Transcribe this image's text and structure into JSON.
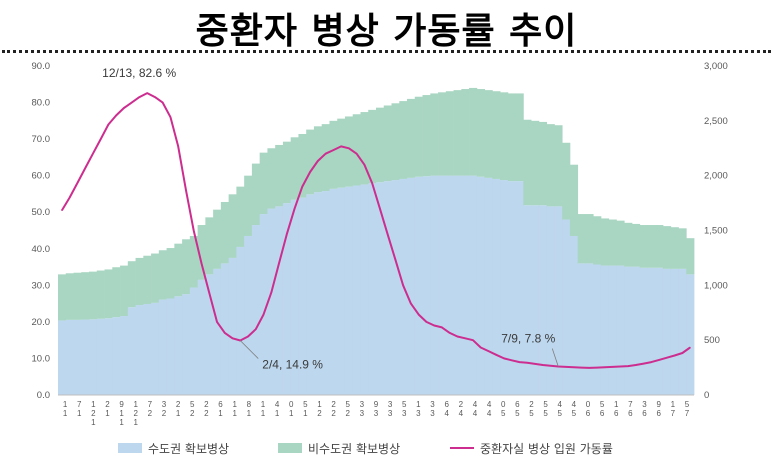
{
  "title": "중환자 병상 가동률 추이",
  "chart_data": {
    "type": "bar+line",
    "left_axis": {
      "min": 0,
      "max": 90,
      "step": 10,
      "ticks": [
        "0.0",
        "10.0",
        "20.0",
        "30.0",
        "40.0",
        "50.0",
        "60.0",
        "70.0",
        "80.0",
        "90.0"
      ]
    },
    "right_axis": {
      "min": 0,
      "max": 3000,
      "step": 500,
      "ticks": [
        "0",
        "500",
        "1,000",
        "1,500",
        "2,000",
        "2,500",
        "3,000"
      ]
    },
    "x_tick_labels": [
      [
        "1",
        "1"
      ],
      [
        "7",
        "1"
      ],
      [
        "1",
        "2",
        "1"
      ],
      [
        "2",
        "1"
      ],
      [
        "9",
        "1",
        "1"
      ],
      [
        "1",
        "2",
        "1"
      ],
      [
        "7",
        "2"
      ],
      [
        "3",
        "2"
      ],
      [
        "2",
        "1"
      ],
      [
        "5",
        "2"
      ],
      [
        "2",
        "2"
      ],
      [
        "6",
        "1"
      ],
      [
        "1",
        "1"
      ],
      [
        "8",
        "1"
      ],
      [
        "1",
        "1"
      ],
      [
        "4",
        "1"
      ],
      [
        "0",
        "1"
      ],
      [
        "5",
        "1"
      ],
      [
        "1",
        "2"
      ],
      [
        "2",
        "2"
      ],
      [
        "5",
        "2"
      ],
      [
        "3",
        "3"
      ],
      [
        "9",
        "3"
      ],
      [
        "3",
        "3"
      ],
      [
        "5",
        "3"
      ],
      [
        "1",
        "3"
      ],
      [
        "3",
        "3"
      ],
      [
        "6",
        "4"
      ],
      [
        "2",
        "4"
      ],
      [
        "4",
        "4"
      ],
      [
        "4",
        "4"
      ],
      [
        "0",
        "5"
      ],
      [
        "6",
        "5"
      ],
      [
        "2",
        "5"
      ],
      [
        "5",
        "5"
      ],
      [
        "4",
        "5"
      ],
      [
        "4",
        "5"
      ],
      [
        "0",
        "6"
      ],
      [
        "5",
        "6"
      ],
      [
        "1",
        "6"
      ],
      [
        "7",
        "6"
      ],
      [
        "3",
        "6"
      ],
      [
        "9",
        "6"
      ],
      [
        "1",
        "7"
      ],
      [
        "5",
        "7"
      ]
    ],
    "series": [
      {
        "name": "수도권 확보병상",
        "axis": "right",
        "kind": "bar",
        "color": "#bdd7ee",
        "values": [
          680,
          685,
          685,
          688,
          690,
          695,
          700,
          710,
          720,
          800,
          820,
          830,
          840,
          870,
          880,
          900,
          920,
          980,
          1050,
          1100,
          1150,
          1200,
          1250,
          1350,
          1450,
          1550,
          1650,
          1700,
          1720,
          1750,
          1780,
          1800,
          1830,
          1850,
          1860,
          1880,
          1890,
          1900,
          1910,
          1920,
          1930,
          1940,
          1950,
          1960,
          1970,
          1980,
          1990,
          1995,
          2000,
          2000,
          2000,
          2000,
          2000,
          2000,
          1990,
          1980,
          1970,
          1960,
          1950,
          1950,
          1730,
          1730,
          1730,
          1720,
          1720,
          1600,
          1450,
          1200,
          1200,
          1190,
          1180,
          1180,
          1180,
          1170,
          1170,
          1160,
          1160,
          1160,
          1150,
          1150,
          1150,
          1100
        ]
      },
      {
        "name": "비수도권 확보병상",
        "axis": "right",
        "kind": "bar",
        "color": "#a9d6c3",
        "values": [
          420,
          425,
          430,
          432,
          435,
          440,
          445,
          455,
          460,
          420,
          430,
          440,
          450,
          450,
          460,
          480,
          500,
          470,
          500,
          520,
          540,
          560,
          580,
          550,
          550,
          560,
          560,
          550,
          560,
          560,
          570,
          580,
          590,
          600,
          610,
          620,
          630,
          640,
          650,
          660,
          670,
          680,
          690,
          700,
          710,
          720,
          730,
          740,
          750,
          760,
          770,
          780,
          790,
          800,
          800,
          800,
          800,
          800,
          800,
          800,
          780,
          770,
          760,
          750,
          740,
          700,
          650,
          450,
          450,
          440,
          430,
          420,
          410,
          400,
          390,
          390,
          390,
          390,
          390,
          380,
          370,
          330
        ]
      },
      {
        "name": "중환자실 병상 입원 가동률",
        "axis": "left",
        "kind": "line",
        "color": "#cc2d8f",
        "values": [
          50.5,
          54,
          58,
          62,
          66,
          70,
          74,
          76.5,
          78.5,
          80,
          81.5,
          82.6,
          81.5,
          80,
          76,
          68,
          56,
          45,
          36,
          28,
          20,
          17,
          15.5,
          14.9,
          16,
          18,
          22,
          28,
          36,
          44,
          51,
          57,
          61,
          64,
          66,
          67,
          68,
          67.5,
          66,
          63,
          58,
          51,
          44,
          37,
          30,
          25,
          22,
          20,
          19,
          18.5,
          17,
          16,
          15.5,
          15,
          13,
          12,
          11,
          10,
          9.5,
          9,
          8.8,
          8.5,
          8.2,
          8,
          7.8,
          7.7,
          7.6,
          7.5,
          7.4,
          7.5,
          7.6,
          7.7,
          7.8,
          7.9,
          8.2,
          8.6,
          9,
          9.6,
          10.2,
          10.8,
          11.5,
          13
        ]
      }
    ],
    "annotations": [
      {
        "text": "12/13, 82.6 %",
        "series_index": 2,
        "point_index": 11
      },
      {
        "text": "2/4, 14.9 %",
        "series_index": 2,
        "point_index": 23
      },
      {
        "text": "7/9, 7.8 %",
        "series_index": 2,
        "point_index": 64
      }
    ]
  }
}
